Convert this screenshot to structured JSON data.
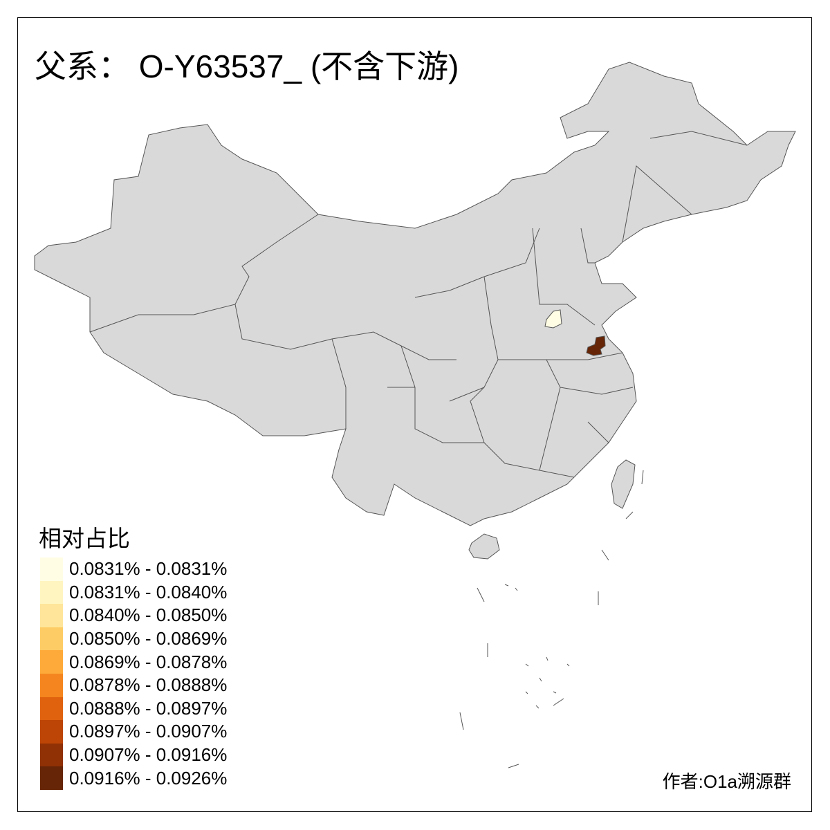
{
  "title": "父系： O-Y63537_ (不含下游)",
  "legend": {
    "title": "相对占比",
    "items": [
      {
        "label": "0.0831% - 0.0831%",
        "color": "#FFFDE4"
      },
      {
        "label": "0.0831% - 0.0840%",
        "color": "#FFF5C0"
      },
      {
        "label": "0.0840% - 0.0850%",
        "color": "#FEE599"
      },
      {
        "label": "0.0850% - 0.0869%",
        "color": "#FECC65"
      },
      {
        "label": "0.0869% - 0.0878%",
        "color": "#FEAA3A"
      },
      {
        "label": "0.0878% - 0.0888%",
        "color": "#F5861F"
      },
      {
        "label": "0.0888% - 0.0897%",
        "color": "#E0620F"
      },
      {
        "label": "0.0897% - 0.0907%",
        "color": "#BD4505"
      },
      {
        "label": "0.0907% - 0.0916%",
        "color": "#8F3005"
      },
      {
        "label": "0.0916% - 0.0926%",
        "color": "#662506"
      }
    ]
  },
  "map": {
    "base_color": "#D9D9D9",
    "border_color": "#555555",
    "highlighted_regions": [
      {
        "class": 0,
        "color": "#FFFDE4"
      },
      {
        "class": 9,
        "color": "#662506"
      }
    ]
  },
  "author": "作者:O1a溯源群"
}
